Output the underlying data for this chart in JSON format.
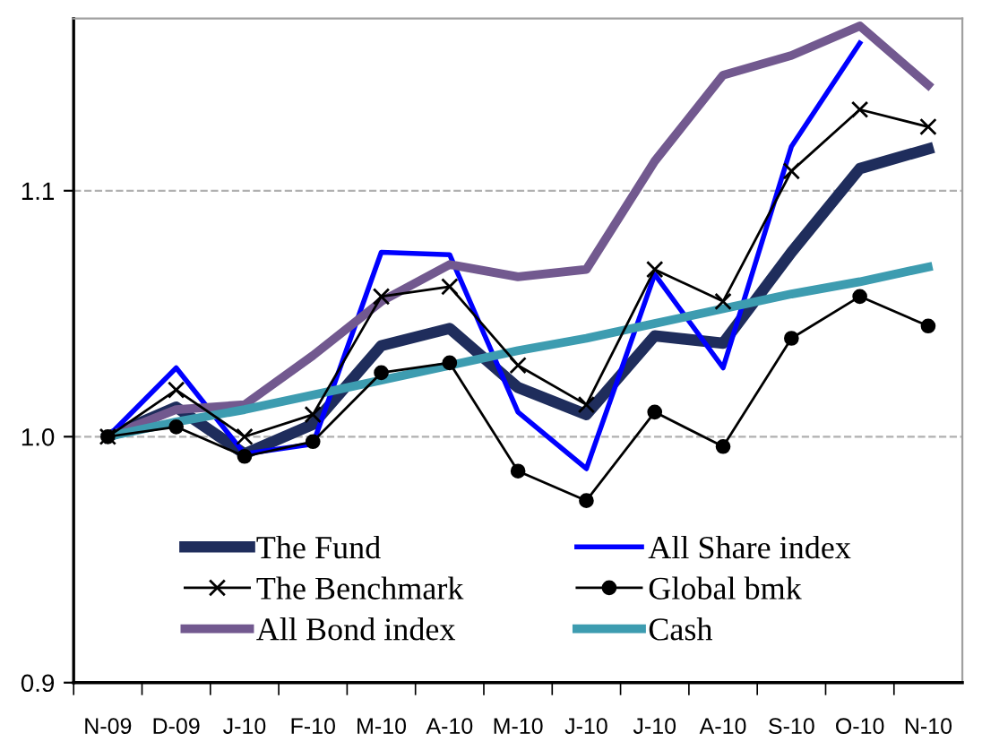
{
  "chart_data": {
    "type": "line",
    "categories": [
      "N-09",
      "D-09",
      "J-10",
      "F-10",
      "M-10",
      "A-10",
      "M-10",
      "J-10",
      "J-10",
      "A-10",
      "S-10",
      "O-10",
      "N-10"
    ],
    "series": [
      {
        "name": "The Fund",
        "color": "#1f2d5c",
        "values": [
          1.0,
          1.012,
          0.993,
          1.005,
          1.037,
          1.044,
          1.02,
          1.009,
          1.041,
          1.038,
          1.075,
          1.109,
          1.117
        ]
      },
      {
        "name": "All Share index",
        "color": "#0000ff",
        "values": [
          1.0,
          1.028,
          0.993,
          0.997,
          1.075,
          1.074,
          1.01,
          0.987,
          1.066,
          1.028,
          1.118,
          1.16,
          null
        ]
      },
      {
        "name": "The Benchmark",
        "color": "#000000",
        "marker": "cross",
        "values": [
          1.0,
          1.019,
          1.0,
          1.009,
          1.057,
          1.061,
          1.029,
          1.013,
          1.068,
          1.055,
          1.108,
          1.133,
          1.126
        ]
      },
      {
        "name": "Global bmk",
        "color": "#000000",
        "marker": "circle",
        "values": [
          1.0,
          1.004,
          0.992,
          0.998,
          1.026,
          1.03,
          0.986,
          0.974,
          1.01,
          0.996,
          1.04,
          1.057,
          1.045
        ]
      },
      {
        "name": "All Bond index",
        "color": "#72598f",
        "values": [
          1.0,
          1.011,
          1.013,
          1.033,
          1.055,
          1.07,
          1.065,
          1.068,
          1.112,
          1.147,
          1.155,
          1.167,
          1.143
        ]
      },
      {
        "name": "Cash",
        "color": "#3d9cb0",
        "values": [
          1.0,
          1.006,
          1.011,
          1.017,
          1.023,
          1.029,
          1.035,
          1.04,
          1.046,
          1.052,
          1.058,
          1.063,
          1.069
        ]
      }
    ],
    "ylim": [
      0.9,
      1.17
    ],
    "yticks": [
      {
        "value": 0.9,
        "label": "0.9"
      },
      {
        "value": 1.0,
        "label": "1.0"
      },
      {
        "value": 1.1,
        "label": "1.1"
      }
    ],
    "grid": "y",
    "legend": "bottom"
  }
}
